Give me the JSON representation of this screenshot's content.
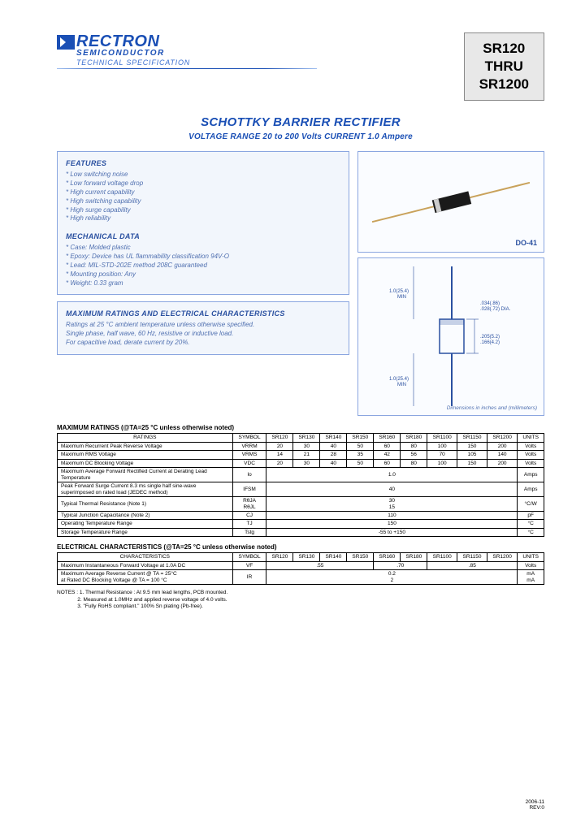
{
  "logo": {
    "name": "RECTRON",
    "sub": "SEMICONDUCTOR",
    "spec": "TECHNICAL SPECIFICATION"
  },
  "series": {
    "top": "SR120",
    "mid": "THRU",
    "bot": "SR1200"
  },
  "title": {
    "main": "SCHOTTKY BARRIER RECTIFIER",
    "sub": "VOLTAGE RANGE 20 to 200 Volts   CURRENT 1.0 Ampere"
  },
  "features": {
    "heading": "FEATURES",
    "items": [
      "Low switching noise",
      "Low forward voltage drop",
      "High current capability",
      "High switching capability",
      "High surge capability",
      "High reliability"
    ]
  },
  "mech": {
    "heading": "MECHANICAL DATA",
    "items": [
      "Case: Molded plastic",
      "Epoxy: Device has UL flammability classification 94V-O",
      "Lead: MIL-STD-202E method 208C guaranteed",
      "Mounting position: Any",
      "Weight: 0.33 gram"
    ]
  },
  "maxchar": {
    "heading": "MAXIMUM RATINGS AND ELECTRICAL CHARACTERISTICS",
    "lines": [
      "Ratings at 25 °C ambient temperature unless otherwise specified.",
      "Single phase, half wave, 60 Hz, resistive or inductive load.",
      "For capacitive load, derate current by 20%."
    ]
  },
  "pkg_label": "DO-41",
  "dim_note": "Dimensions in inches and (millimeters)",
  "ratings_title": "MAXIMUM RATINGS (@TA=25 °C unless otherwise noted)",
  "ratings_header": [
    "RATINGS",
    "SYMBOL",
    "SR120",
    "SR130",
    "SR140",
    "SR150",
    "SR160",
    "SR180",
    "SR1100",
    "SR1150",
    "SR1200",
    "UNITS"
  ],
  "ratings_rows": [
    {
      "label": "Maximum Recurrent Peak Reverse Voltage",
      "sym": "VRRM",
      "vals": [
        "20",
        "30",
        "40",
        "50",
        "60",
        "80",
        "100",
        "150",
        "200"
      ],
      "unit": "Volts"
    },
    {
      "label": "Maximum RMS Voltage",
      "sym": "VRMS",
      "vals": [
        "14",
        "21",
        "28",
        "35",
        "42",
        "56",
        "70",
        "105",
        "140"
      ],
      "unit": "Volts"
    },
    {
      "label": "Maximum DC Blocking Voltage",
      "sym": "VDC",
      "vals": [
        "20",
        "30",
        "40",
        "50",
        "60",
        "80",
        "100",
        "150",
        "200"
      ],
      "unit": "Volts"
    },
    {
      "label": "Maximum Average Forward Rectified Current at Derating Lead Temperature",
      "sym": "Io",
      "span": "1.0",
      "unit": "Amps"
    },
    {
      "label": "Peak Forward Surge Current 8.3 ms single half sine-wave superimposed on rated load (JEDEC method)",
      "sym": "IFSM",
      "span": "40",
      "unit": "Amps"
    },
    {
      "label": "Typical Thermal Resistance (Note 1)",
      "sym": "RθJA\nRθJL",
      "span": "30\n15",
      "unit": "°C/W"
    },
    {
      "label": "Typical Junction Capacitance (Note 2)",
      "sym": "CJ",
      "span": "110",
      "unit": "pF"
    },
    {
      "label": "Operating Temperature Range",
      "sym": "TJ",
      "span": "150",
      "unit": "°C"
    },
    {
      "label": "Storage Temperature Range",
      "sym": "Tstg",
      "span": "-55 to +150",
      "unit": "°C"
    }
  ],
  "elec_title": "ELECTRICAL CHARACTERISTICS (@TA=25 °C unless otherwise noted)",
  "elec_header": [
    "CHARACTERISTICS",
    "SYMBOL",
    "SR120",
    "SR130",
    "SR140",
    "SR150",
    "SR160",
    "SR180",
    "SR1100",
    "SR1150",
    "SR1200",
    "UNITS"
  ],
  "elec_rows": [
    {
      "label": "Maximum Instantaneous Forward Voltage at 1.0A DC",
      "sym": "VF",
      "groups": [
        ".55",
        ".70",
        ".85"
      ],
      "unit": "Volts"
    },
    {
      "label": "Maximum Average Reverse Current   @ TA = 25°C\nat Rated DC Blocking Voltage          @ TA = 100 °C",
      "sym": "IR",
      "lines": [
        "0.2",
        "2"
      ],
      "unit": "mA\nmA"
    }
  ],
  "notes": {
    "prefix": "NOTES :",
    "lines": [
      "1. Thermal Resistance : At 9.5 mm lead lengths, PCB mounted.",
      "2. Measured at 1.0MHz and applied reverse voltage of 4.0 volts.",
      "3. \"Fully RoHS compliant.\" 100% Sn plating (Pb-free)."
    ]
  },
  "footer": {
    "date": "2006-11",
    "rev": "REV:0"
  }
}
